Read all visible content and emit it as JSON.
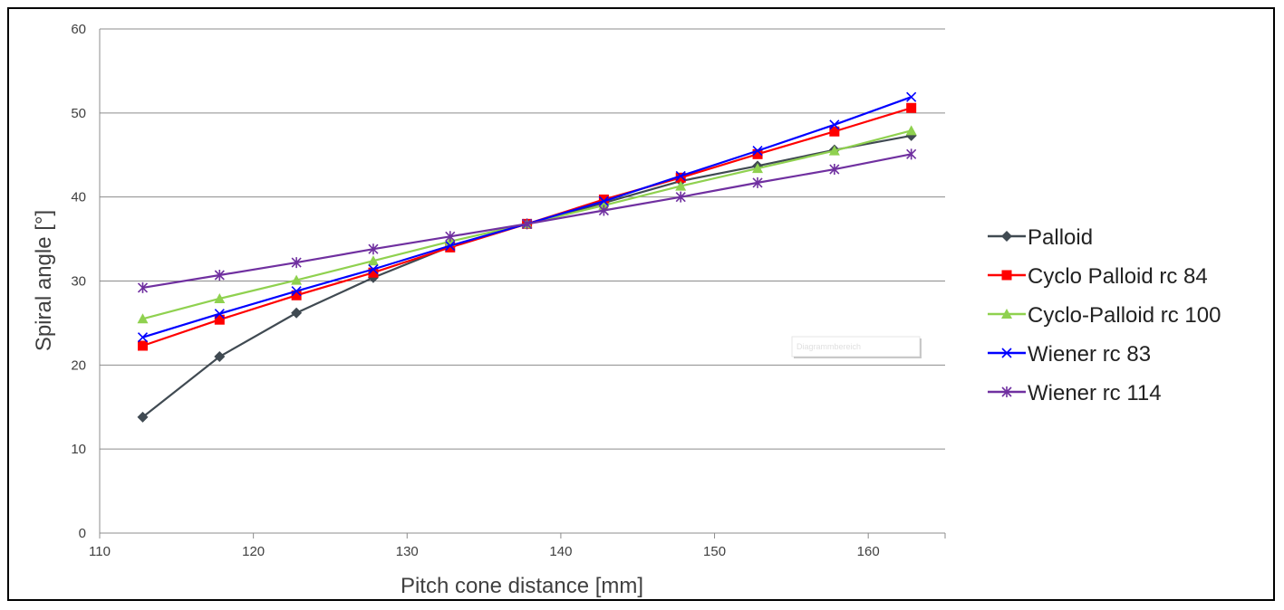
{
  "chart_data": {
    "type": "line",
    "title": "",
    "xlabel": "Pitch cone distance [mm]",
    "ylabel": "Spiral angle [°]",
    "xlim": [
      110,
      165
    ],
    "ylim": [
      0,
      60
    ],
    "xticks": [
      110,
      120,
      130,
      140,
      150,
      160
    ],
    "yticks": [
      0,
      10,
      20,
      30,
      40,
      50,
      60
    ],
    "grid": "horizontal",
    "legend_position": "right",
    "x": [
      112.8,
      117.8,
      122.8,
      127.8,
      132.8,
      137.8,
      142.8,
      147.8,
      152.8,
      157.8,
      162.8
    ],
    "series": [
      {
        "name": "Palloid",
        "color": "#404a52",
        "marker": "diamond",
        "values": [
          13.8,
          21.0,
          26.2,
          30.4,
          34.1,
          36.8,
          39.3,
          41.9,
          43.7,
          45.6,
          47.3
        ]
      },
      {
        "name": "Cyclo Palloid rc 84",
        "color": "#ff0000",
        "marker": "square",
        "values": [
          22.3,
          25.4,
          28.3,
          31.0,
          34.0,
          36.8,
          39.7,
          42.3,
          45.1,
          47.8,
          50.6
        ]
      },
      {
        "name": "Cyclo-Palloid rc 100",
        "color": "#8fd14f",
        "marker": "triangle",
        "values": [
          25.5,
          27.9,
          30.1,
          32.4,
          34.7,
          36.8,
          39.0,
          41.3,
          43.4,
          45.5,
          47.9
        ]
      },
      {
        "name": "Wiener rc 83",
        "color": "#0000ff",
        "marker": "x",
        "values": [
          23.3,
          26.1,
          28.8,
          31.4,
          34.2,
          36.8,
          39.5,
          42.5,
          45.5,
          48.6,
          51.9
        ]
      },
      {
        "name": "Wiener rc 114",
        "color": "#7030a0",
        "marker": "star",
        "values": [
          29.2,
          30.7,
          32.2,
          33.8,
          35.3,
          36.8,
          38.4,
          40.0,
          41.7,
          43.3,
          45.1
        ]
      }
    ],
    "overlay_label": "Diagrammbereich"
  }
}
